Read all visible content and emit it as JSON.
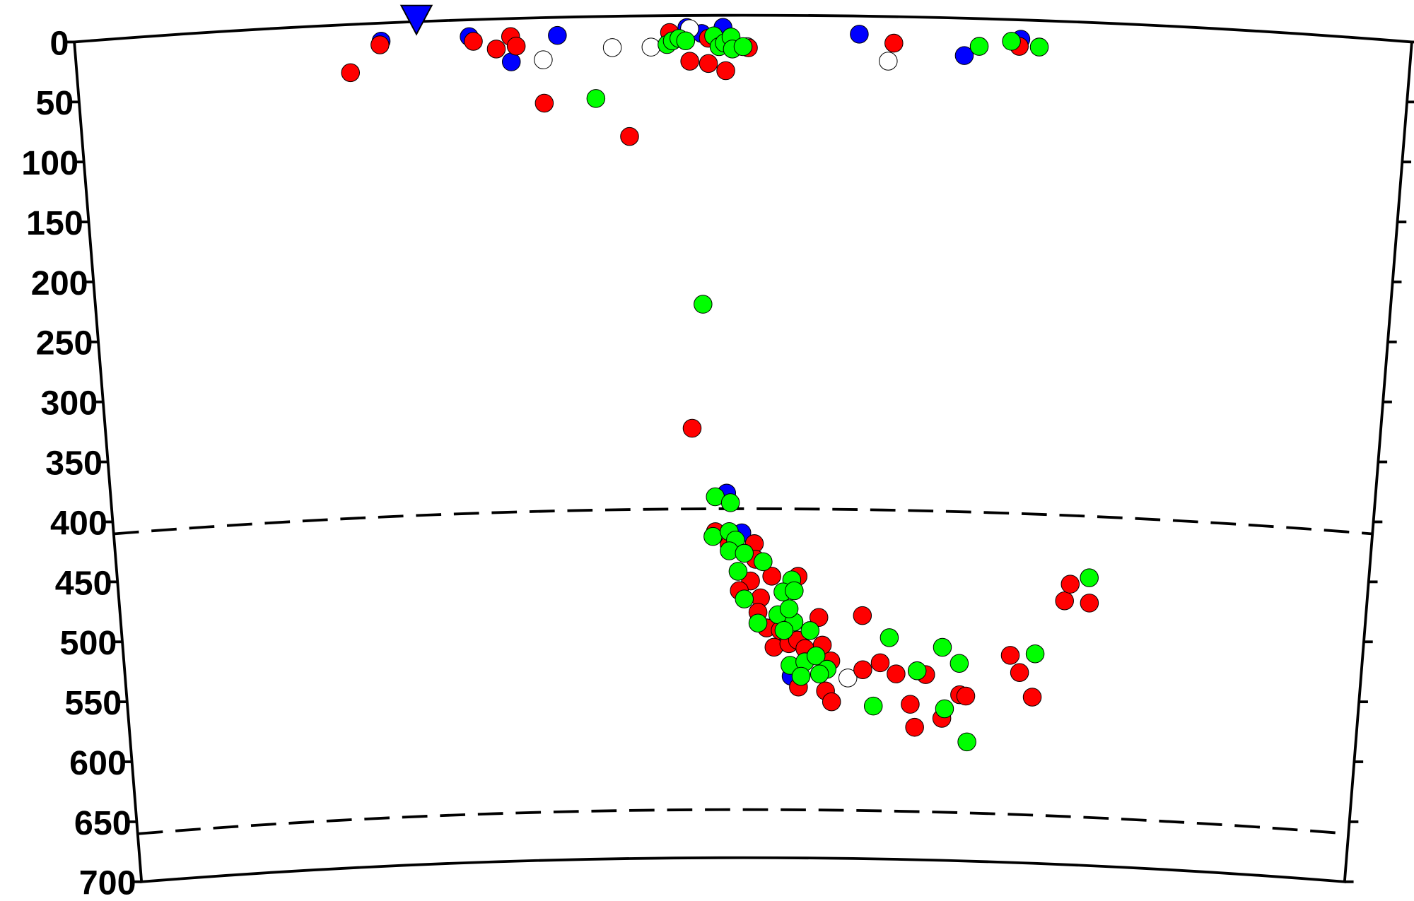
{
  "chart_data": {
    "type": "scatter",
    "xlim": [
      0,
      100
    ],
    "ylim": [
      0,
      700
    ],
    "yticks": [
      0,
      50,
      100,
      150,
      200,
      250,
      300,
      350,
      400,
      450,
      500,
      550,
      600,
      650,
      700
    ],
    "dashed_depths": [
      410,
      660
    ],
    "station": {
      "x": 25.6,
      "color": "#0000ff"
    },
    "series": [
      {
        "color": "#0000ff",
        "x": [
          22.9,
          29.5,
          32.6,
          36.1,
          45.8,
          46.9,
          48.5,
          58.7,
          66.6,
          70.8,
          48.7,
          49.9,
          53.9
        ],
        "values": [
          15,
          14,
          36,
          15,
          10,
          15,
          10,
          15,
          31,
          16,
          397,
          430,
          549
        ]
      },
      {
        "color": "#ffffff",
        "x": [
          35.0,
          40.2,
          43.1,
          46.0,
          50.3,
          60.9,
          58.5
        ],
        "values": [
          35,
          26,
          26,
          11,
          26,
          37,
          550
        ]
      },
      {
        "color": "#ff0000",
        "x": [
          20.5,
          22.8,
          29.8,
          31.5,
          32.6,
          33.0,
          35.0,
          41.4,
          44.5,
          46.0,
          47.4,
          47.4,
          48.7,
          50.4,
          61.3,
          70.7,
          46.0,
          47.8,
          48.9,
          50.9,
          51.0,
          50.6,
          49.7,
          51.4,
          52.3,
          54.4,
          51.2,
          51.9,
          52.5,
          53.0,
          53.7,
          54.4,
          55.0,
          56.1,
          56.4,
          57.1,
          54.5,
          56.7,
          57.2,
          59.6,
          59.7,
          61.1,
          62.4,
          64.8,
          63.6,
          64.0,
          66.2,
          67.6,
          68.1,
          71.6,
          72.4,
          73.5,
          75.8,
          76.2,
          77.8
        ],
        "values": [
          40,
          18,
          18,
          25,
          15,
          23,
          71,
          100,
          14,
          38,
          40,
          19,
          46,
          27,
          22,
          22,
          343,
          429,
          440,
          439,
          452,
          470,
          478,
          484,
          466,
          466,
          496,
          509,
          525,
          511,
          522,
          519,
          526,
          500,
          523,
          536,
          558,
          561,
          570,
          498,
          543,
          537,
          546,
          546,
          571,
          590,
          582,
          562,
          563,
          528,
          542,
          562,
          481,
          467,
          482
        ]
      },
      {
        "color": "#00ff00",
        "x": [
          38.9,
          44.3,
          44.7,
          45.2,
          45.7,
          47.8,
          48.2,
          48.6,
          49.1,
          49.2,
          50.0,
          67.7,
          70.1,
          72.2,
          46.9,
          47.8,
          49.0,
          47.6,
          48.9,
          49.4,
          48.9,
          50.1,
          51.6,
          49.6,
          50.1,
          51.2,
          53.9,
          53.2,
          54.1,
          52.8,
          54.1,
          53.7,
          53.3,
          55.4,
          53.8,
          55.0,
          55.9,
          56.8,
          54.7,
          56.2,
          61.8,
          60.6,
          64.1,
          66.1,
          67.5,
          66.4,
          68.3,
          73.6,
          77.7
        ],
        "values": [
          68,
          24,
          21,
          19,
          21,
          17,
          26,
          23,
          18,
          28,
          26,
          23,
          18,
          22,
          240,
          400,
          405,
          433,
          429,
          436,
          445,
          447,
          454,
          462,
          485,
          505,
          469,
          479,
          478,
          498,
          504,
          493,
          511,
          511,
          540,
          537,
          532,
          543,
          549,
          547,
          516,
          573,
          543,
          523,
          536,
          574,
          601,
          526,
          461
        ]
      }
    ]
  }
}
